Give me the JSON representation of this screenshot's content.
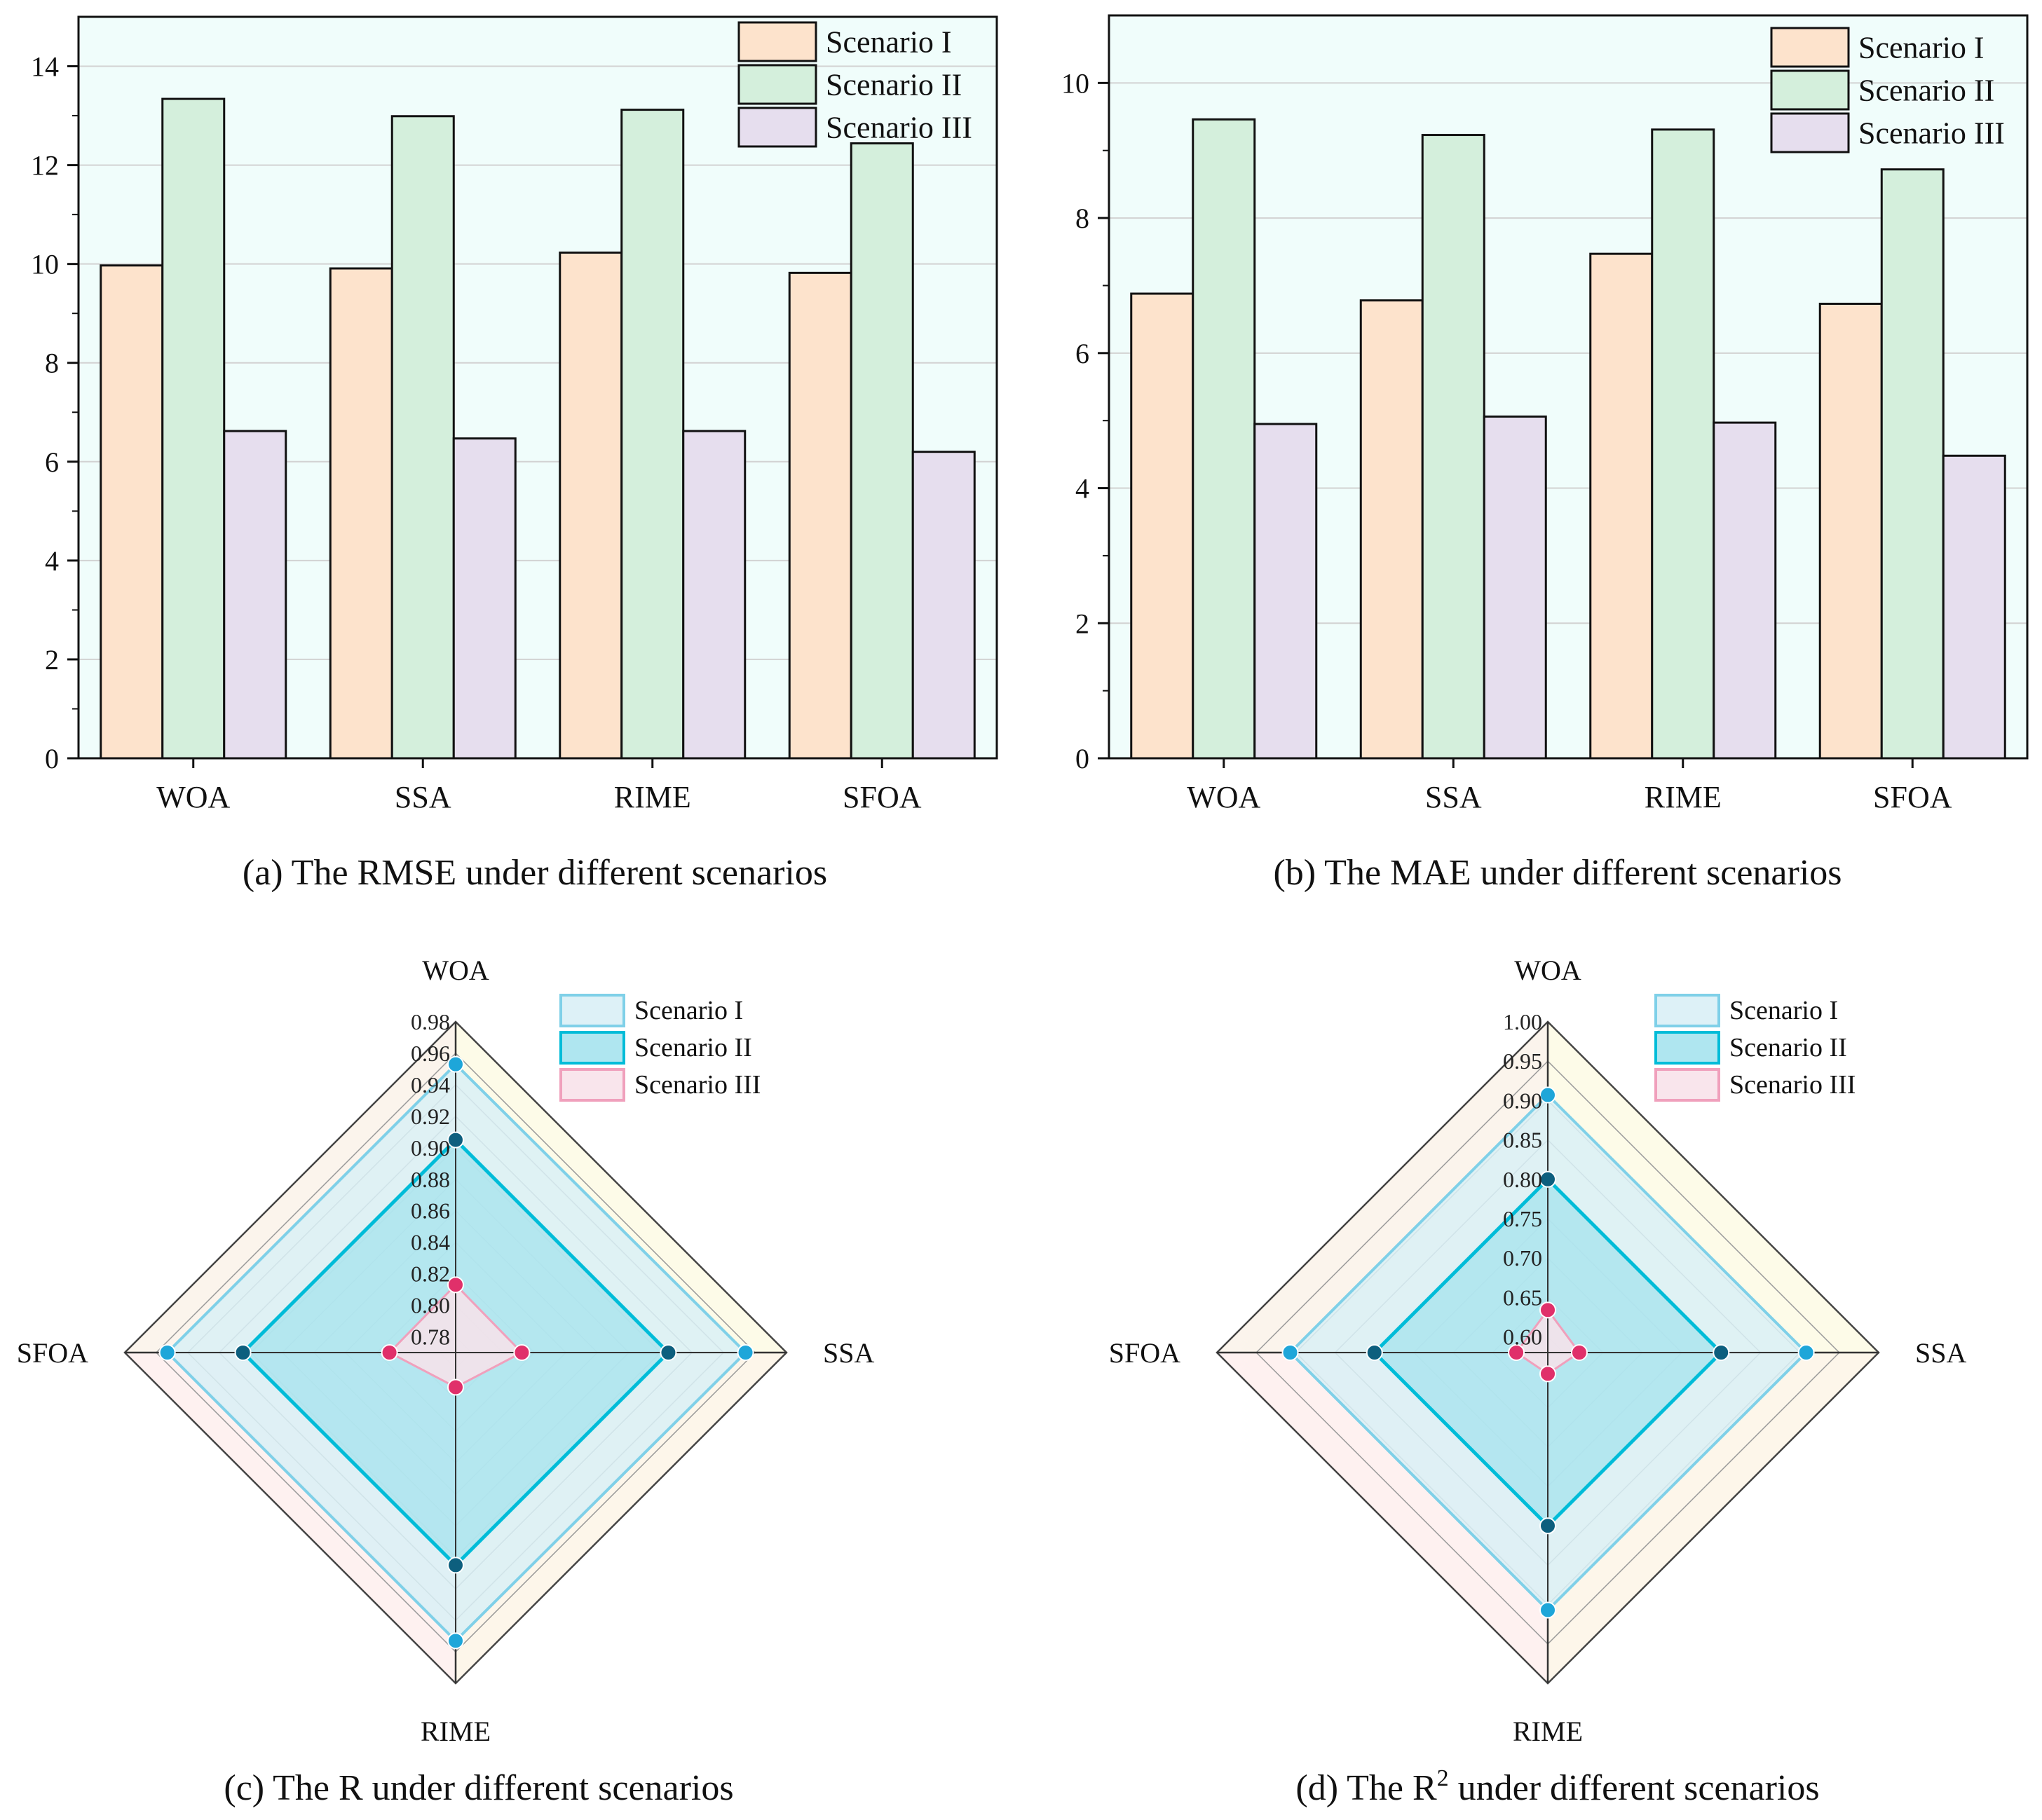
{
  "colors": {
    "plot_bg": "#f0fdfb",
    "bar_s1": "#fde3cc",
    "bar_s2": "#d4efdc",
    "bar_s3": "#e6deee",
    "radar_s1_fill": "#d9f0f6",
    "radar_s1_line": "#7fd0e8",
    "radar_s1_marker": "#1ea6d9",
    "radar_s2_fill": "#a6e3ee",
    "radar_s2_line": "#00bcd8",
    "radar_s2_marker": "#0d5f7e",
    "radar_s3_fill": "#f8e2ea",
    "radar_s3_line": "#f0a0bc",
    "radar_s3_marker": "#e0306a"
  },
  "captions": {
    "a": "(a) The RMSE under different scenarios",
    "b": "(b) The MAE under different scenarios",
    "c": "(c) The R under different scenarios",
    "d_prefix": "(d) The R",
    "d_sup": "2",
    "d_suffix": " under different scenarios"
  },
  "chart_data": [
    {
      "id": "a",
      "type": "bar",
      "title": "The RMSE under different scenarios",
      "categories": [
        "WOA",
        "SSA",
        "RIME",
        "SFOA"
      ],
      "series": [
        {
          "name": "Scenario I",
          "values": [
            9.97,
            9.91,
            10.23,
            9.82
          ]
        },
        {
          "name": "Scenario II",
          "values": [
            13.34,
            12.99,
            13.12,
            12.44
          ]
        },
        {
          "name": "Scenario III",
          "values": [
            6.62,
            6.47,
            6.62,
            6.2
          ]
        }
      ],
      "ylim": [
        0,
        15
      ],
      "yticks": [
        0,
        2,
        4,
        6,
        8,
        10,
        12,
        14
      ],
      "legend": "top-right"
    },
    {
      "id": "b",
      "type": "bar",
      "title": "The MAE under different scenarios",
      "categories": [
        "WOA",
        "SSA",
        "RIME",
        "SFOA"
      ],
      "series": [
        {
          "name": "Scenario I",
          "values": [
            6.88,
            6.78,
            7.47,
            6.73
          ]
        },
        {
          "name": "Scenario II",
          "values": [
            9.46,
            9.23,
            9.31,
            8.72
          ]
        },
        {
          "name": "Scenario III",
          "values": [
            4.95,
            5.06,
            4.97,
            4.48
          ]
        }
      ],
      "ylim": [
        0,
        11
      ],
      "yticks": [
        0,
        2,
        4,
        6,
        8,
        10
      ],
      "legend": "top-right"
    },
    {
      "id": "c",
      "type": "radar",
      "title": "The R under different scenarios",
      "axes": [
        "WOA",
        "SSA",
        "RIME",
        "SFOA"
      ],
      "range": [
        0.77,
        0.98
      ],
      "ticks": [
        "0.78",
        "0.80",
        "0.82",
        "0.84",
        "0.86",
        "0.88",
        "0.90",
        "0.92",
        "0.94",
        "0.96",
        "0.98"
      ],
      "series": [
        {
          "name": "Scenario I",
          "values": [
            0.953,
            0.954,
            0.953,
            0.953
          ]
        },
        {
          "name": "Scenario II",
          "values": [
            0.905,
            0.905,
            0.905,
            0.905
          ]
        },
        {
          "name": "Scenario III",
          "values": [
            0.813,
            0.812,
            0.792,
            0.812
          ]
        }
      ],
      "legend": "top-right"
    },
    {
      "id": "d",
      "type": "radar",
      "title": "The R² under different scenarios",
      "axes": [
        "WOA",
        "SSA",
        "RIME",
        "SFOA"
      ],
      "range": [
        0.58,
        1.0
      ],
      "ticks": [
        "0.60",
        "0.65",
        "0.70",
        "0.75",
        "0.80",
        "0.85",
        "0.90",
        "0.95",
        "1.00"
      ],
      "series": [
        {
          "name": "Scenario I",
          "values": [
            0.907,
            0.908,
            0.907,
            0.907
          ]
        },
        {
          "name": "Scenario II",
          "values": [
            0.8,
            0.8,
            0.8,
            0.8
          ]
        },
        {
          "name": "Scenario III",
          "values": [
            0.634,
            0.62,
            0.607,
            0.62
          ]
        }
      ],
      "legend": "top-right"
    }
  ]
}
